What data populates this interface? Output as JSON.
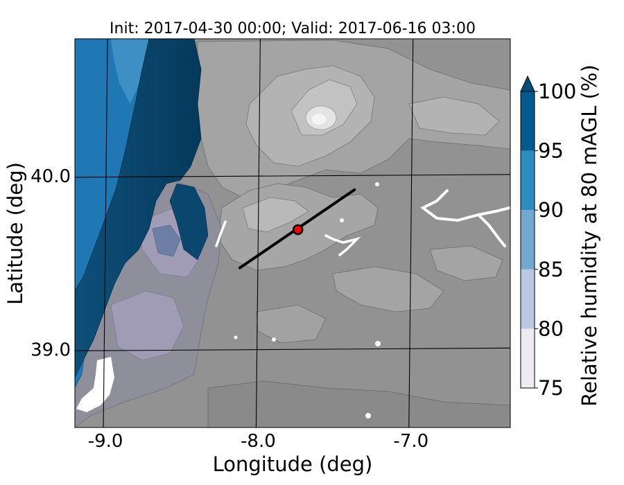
{
  "chart_data": {
    "type": "heatmap",
    "title": "Init: 2017-04-30 00:00; Valid: 2017-06-16 03:00",
    "xlabel": "Longitude (deg)",
    "ylabel": "Latitude (deg)",
    "xlim": [
      -9.2,
      -6.35
    ],
    "ylim": [
      38.55,
      40.79
    ],
    "x_ticks": [
      -9.0,
      -8.0,
      -7.0
    ],
    "x_tick_labels": [
      "-9.0",
      "-8.0",
      "-7.0"
    ],
    "y_ticks": [
      39.0,
      40.0
    ],
    "y_tick_labels": [
      "39.0",
      "40.0"
    ],
    "grid": true,
    "colorbar": {
      "label": "Relative humidity at 80 mAGL (%)",
      "levels": [
        75,
        80,
        85,
        90,
        95,
        100
      ],
      "level_labels": [
        "75",
        "80",
        "85",
        "90",
        "95",
        "100"
      ],
      "extend": "max",
      "colors": [
        "#efeaf4",
        "#bcc7e1",
        "#74a9cf",
        "#2b8cbe",
        "#045a8d",
        "#034e7b"
      ]
    },
    "transect": {
      "start": [
        -8.12,
        39.47
      ],
      "end": [
        -7.37,
        39.92
      ]
    },
    "marker": {
      "lon": -7.74,
      "lat": 39.69,
      "color": "#ff0000"
    },
    "colors": {
      "terrain_base": "#929292",
      "terrain_mid": "#a9a9a9",
      "terrain_high": "#c6c6c6",
      "peak": "#efefef",
      "humid_band": "#1f78b4",
      "humid_core": "#083c5f",
      "mixed_zone": "#8f8f9c"
    }
  }
}
